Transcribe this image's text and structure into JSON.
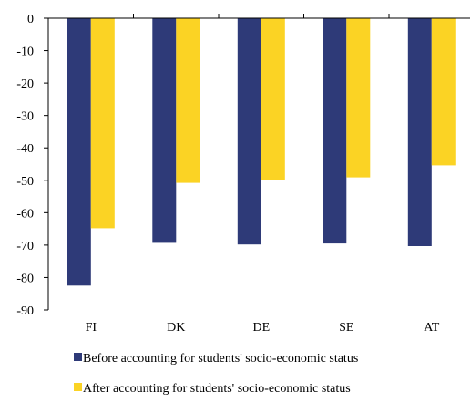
{
  "chart_data": {
    "type": "bar",
    "categories": [
      "FI",
      "DK",
      "DE",
      "SE",
      "AT"
    ],
    "series": [
      {
        "name": "Before accounting for students' socio-economic status",
        "color": "#2e3a78",
        "values": [
          -82.5,
          -69.3,
          -69.8,
          -69.5,
          -70.3
        ]
      },
      {
        "name": "After accounting for students' socio-economic status",
        "color": "#fbd324",
        "values": [
          -64.8,
          -50.8,
          -49.9,
          -49.1,
          -45.4
        ]
      }
    ],
    "ylim": [
      -90,
      0
    ],
    "yticks": [
      0,
      -10,
      -20,
      -30,
      -40,
      -50,
      -60,
      -70,
      -80,
      -90
    ],
    "ytick_labels": [
      "0",
      "-10",
      "-20",
      "-30",
      "-40",
      "-50",
      "-60",
      "-70",
      "-80",
      "-90"
    ],
    "title": "",
    "xlabel": "",
    "ylabel": "",
    "grid": false,
    "legend_position": "bottom"
  }
}
